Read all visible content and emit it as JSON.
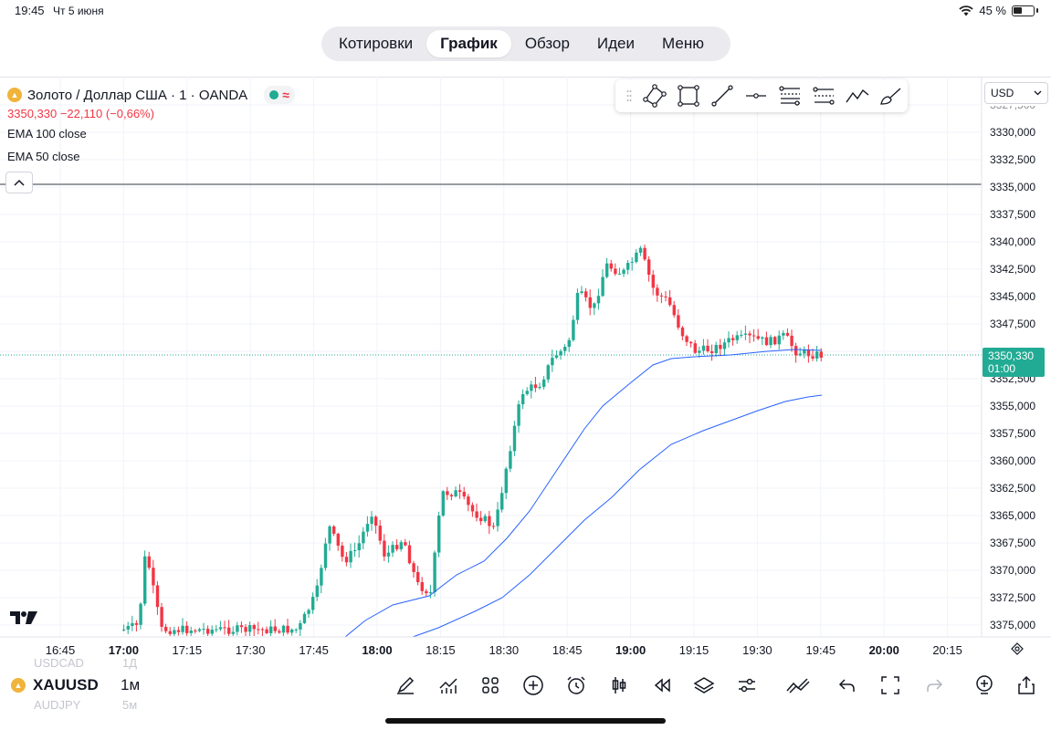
{
  "status_bar": {
    "time": "19:45",
    "date": "Чт 5 июня",
    "battery": "45 %"
  },
  "tabs": [
    {
      "label": "Котировки",
      "active": false
    },
    {
      "label": "График",
      "active": true
    },
    {
      "label": "Обзор",
      "active": false
    },
    {
      "label": "Идеи",
      "active": false
    },
    {
      "label": "Меню",
      "active": false
    }
  ],
  "legend": {
    "symbol_title": "Золото / Доллар США · 1 · OANDA",
    "price_change": "3350,330  −22,110 (−0,66%)",
    "indicator_1": "EMA 100 close",
    "indicator_2": "EMA 50 close"
  },
  "currency": "USD",
  "price_axis": [
    "3327,500",
    "3330,000",
    "3332,500",
    "3335,000",
    "3337,500",
    "3340,000",
    "3342,500",
    "3345,000",
    "3347,500",
    "3352,500",
    "3355,000",
    "3357,500",
    "3360,000",
    "3362,500",
    "3365,000",
    "3367,500",
    "3370,000",
    "3372,500",
    "3375,000"
  ],
  "last_price_tag": {
    "price": "3350,330",
    "countdown": "01:00"
  },
  "time_axis": [
    {
      "label": "16:45",
      "bold": false
    },
    {
      "label": "17:00",
      "bold": true
    },
    {
      "label": "17:15",
      "bold": false
    },
    {
      "label": "17:30",
      "bold": false
    },
    {
      "label": "17:45",
      "bold": false
    },
    {
      "label": "18:00",
      "bold": true
    },
    {
      "label": "18:15",
      "bold": false
    },
    {
      "label": "18:30",
      "bold": false
    },
    {
      "label": "18:45",
      "bold": false
    },
    {
      "label": "19:00",
      "bold": true
    },
    {
      "label": "19:15",
      "bold": false
    },
    {
      "label": "19:30",
      "bold": false
    },
    {
      "label": "19:45",
      "bold": false
    },
    {
      "label": "20:00",
      "bold": true
    },
    {
      "label": "20:15",
      "bold": false
    }
  ],
  "bottom": {
    "symbol": "XAUUSD",
    "interval": "1м",
    "ghost_symbol_above": "USDCAD",
    "ghost_interval_above": "1Д",
    "ghost_symbol_below": "AUDJPY",
    "ghost_interval_below": "5м"
  },
  "icons": {
    "drawing_tools": [
      "drag-handle-icon",
      "path-tool-icon",
      "rectangle-tool-icon",
      "trend-line-icon",
      "horizontal-ray-icon",
      "fib-retracement-icon",
      "parallel-channel-icon",
      "pattern-tool-icon",
      "brush-tool-icon"
    ],
    "bottom_tools": [
      "draw-icon",
      "indicators-icon",
      "templates-icon",
      "add-compare-icon",
      "alert-icon",
      "chart-type-icon",
      "replay-icon",
      "layers-icon",
      "settings-icon",
      "trend-icon",
      "undo-icon",
      "fullscreen-icon",
      "redo-icon",
      "zoom-in-icon",
      "share-icon"
    ]
  },
  "colors": {
    "up": "#22ab94",
    "down": "#f23645",
    "ema": "#2962ff",
    "accent": "#22ab94",
    "horizontal_line": "#5d606b"
  }
}
